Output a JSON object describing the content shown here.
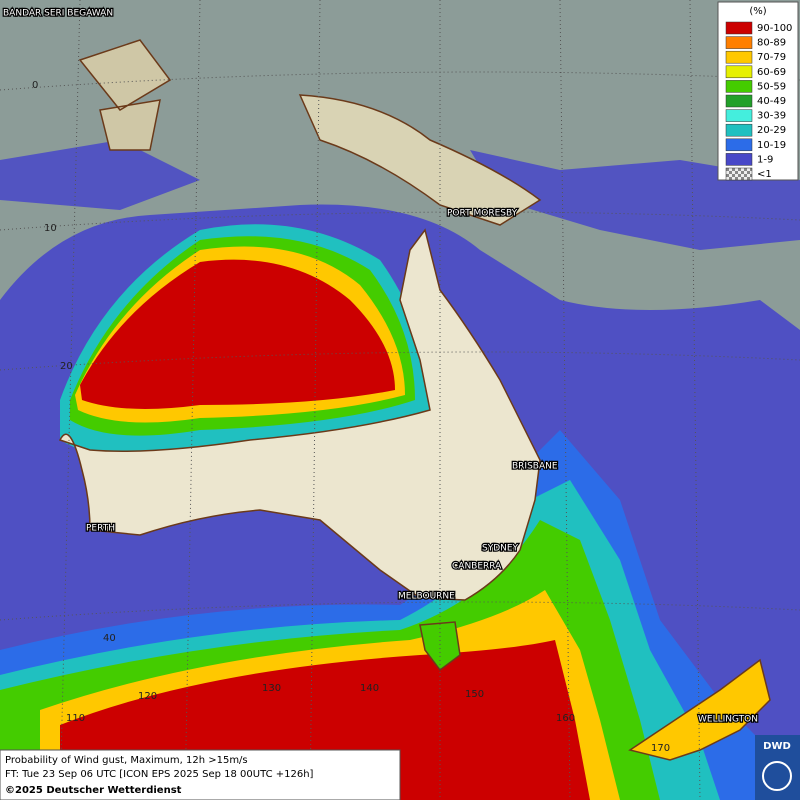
{
  "map": {
    "cities": [
      "BANDAR SERI BEGAWAN",
      "PORT MORESBY",
      "BRISBANE",
      "SYDNEY",
      "CANBERRA",
      "MELBOURNE",
      "PERTH",
      "WELLINGTON"
    ],
    "grid_labels": [
      "0",
      "10",
      "20",
      "40",
      "110",
      "120",
      "130",
      "140",
      "150",
      "160",
      "170"
    ],
    "legend": {
      "title": "(%)",
      "items": [
        {
          "label": "90-100",
          "color": "#cc0000"
        },
        {
          "label": "80-89",
          "color": "#ff7f00"
        },
        {
          "label": "70-79",
          "color": "#ffc800"
        },
        {
          "label": "60-69",
          "color": "#e6f000"
        },
        {
          "label": "50-59",
          "color": "#44cc00"
        },
        {
          "label": "40-49",
          "color": "#22a02a"
        },
        {
          "label": "30-39",
          "color": "#44eedd"
        },
        {
          "label": "20-29",
          "color": "#20c0c0"
        },
        {
          "label": "10-19",
          "color": "#2c6ce8"
        },
        {
          "label": "1-9",
          "color": "#4848c8"
        },
        {
          "label": "<1",
          "color": "checker"
        }
      ]
    },
    "footer": [
      "Probability of Wind gust, Maximum, 12h >15m/s",
      "FT: Tue 23 Sep 06 UTC [ICON EPS 2025 Sep 18 00UTC +126h]",
      "©2025 Deutscher Wetterdienst"
    ],
    "logo": "DWD"
  }
}
